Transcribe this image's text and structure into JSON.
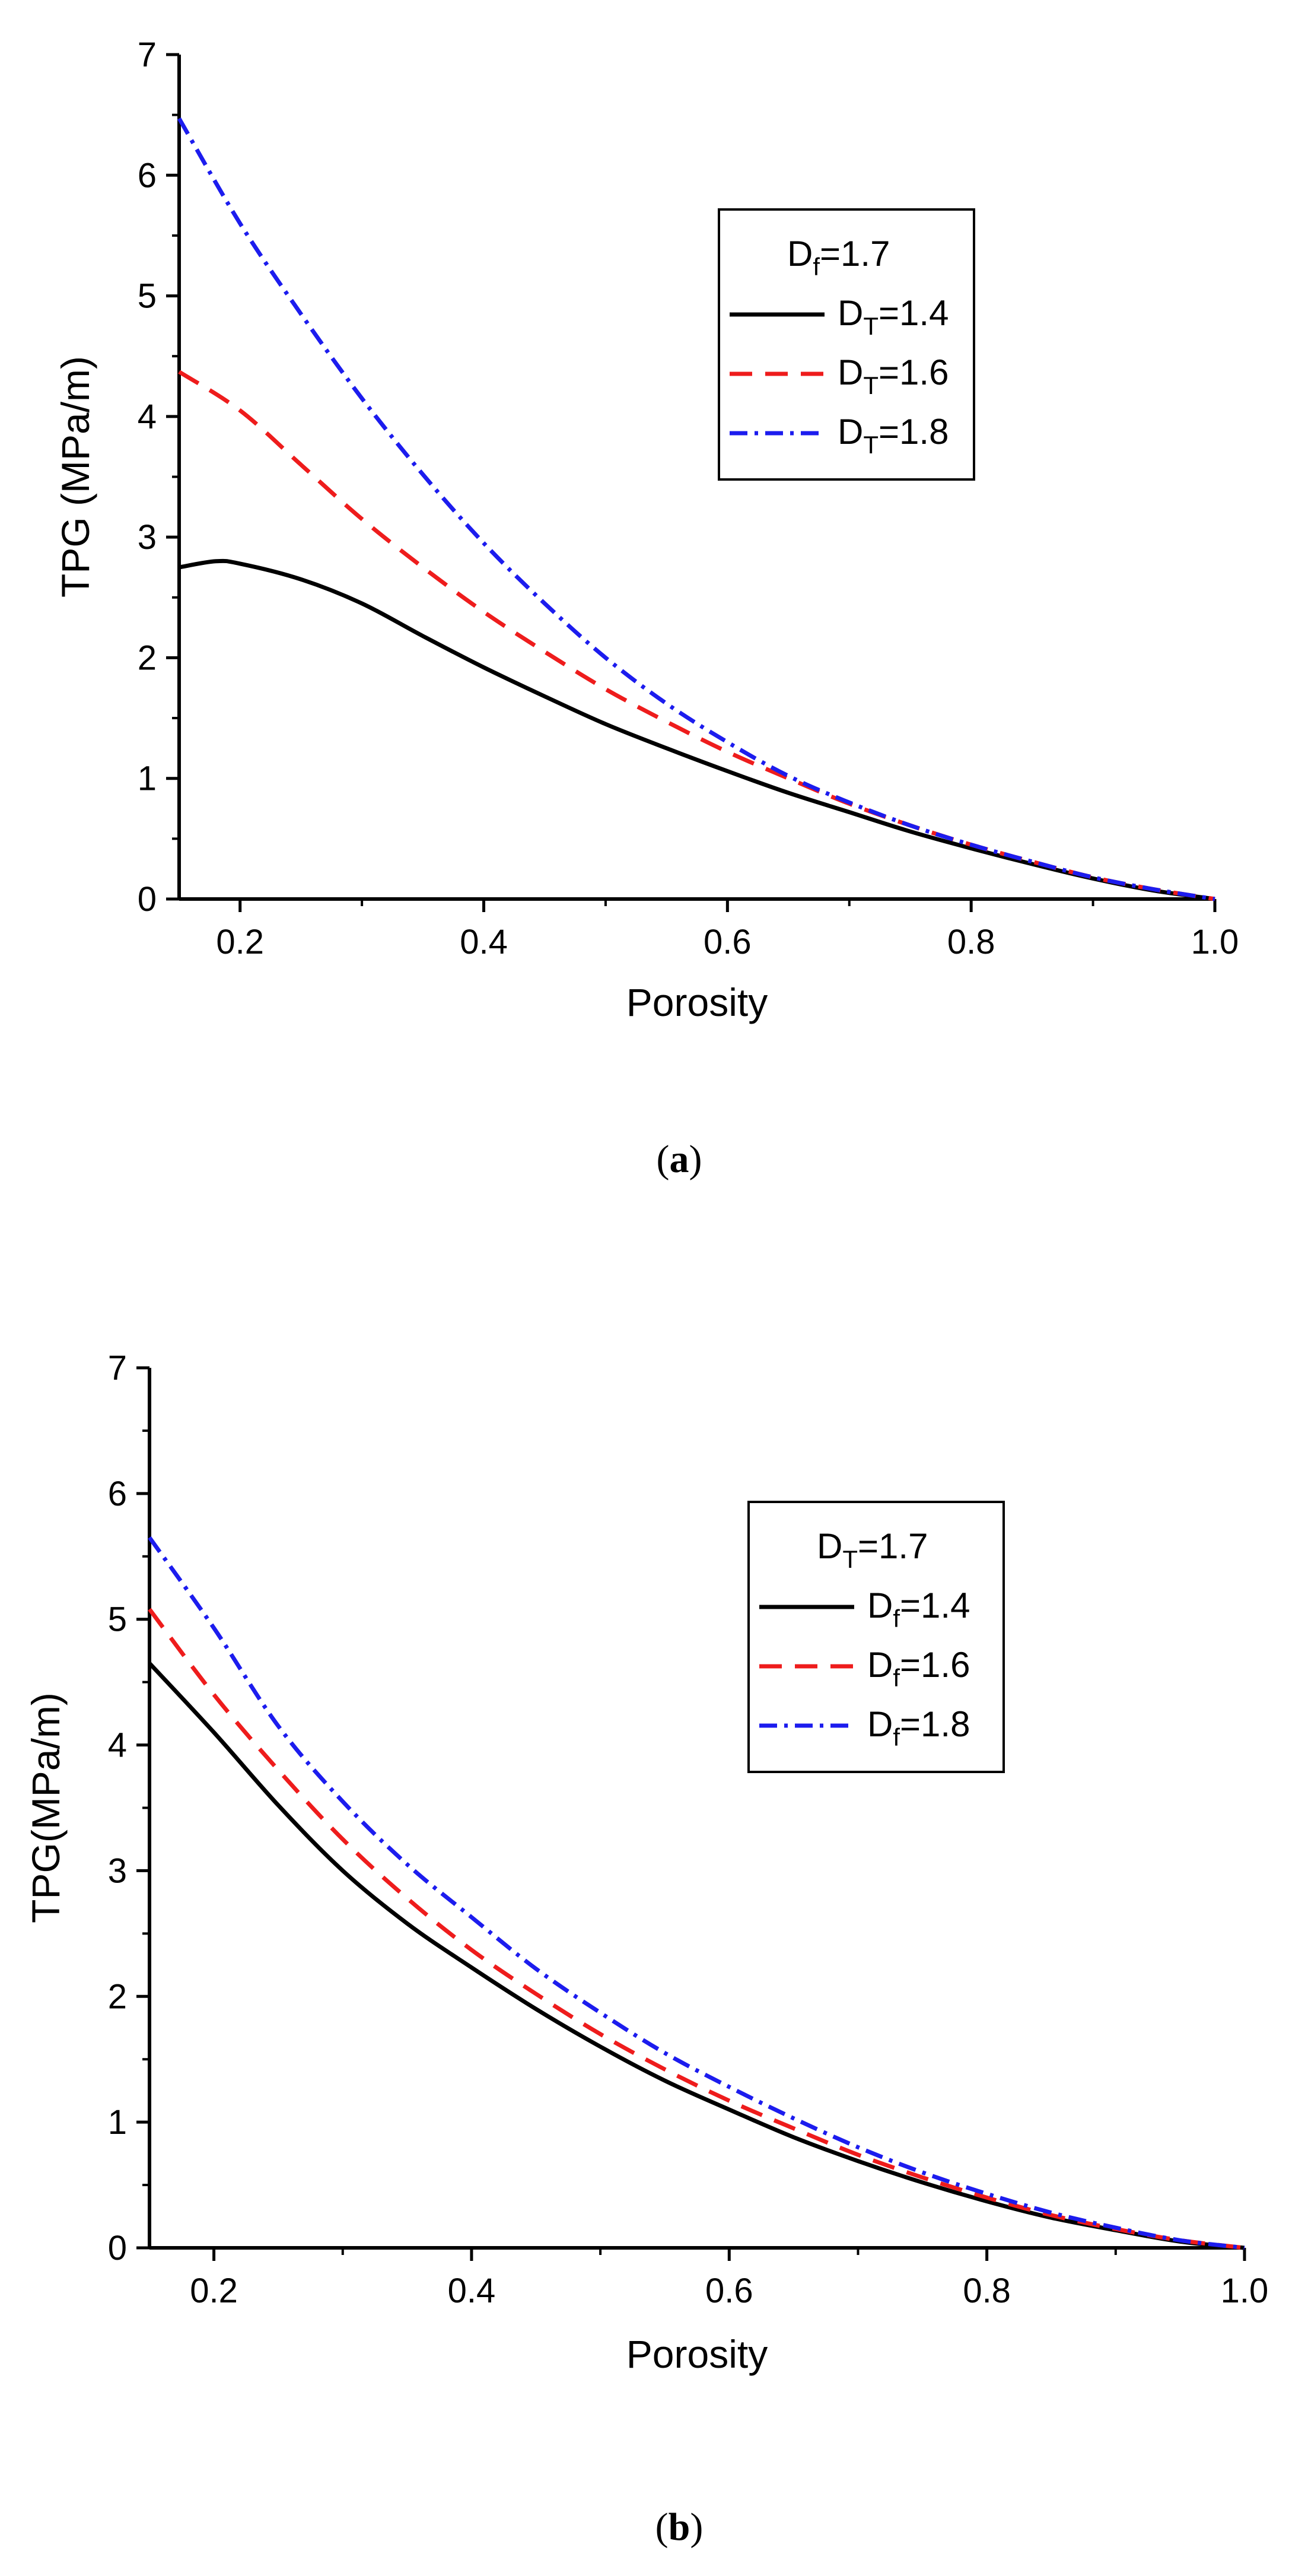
{
  "colors": {
    "black": "#000000",
    "red": "#ee1c1c",
    "blue": "#1c1cee"
  },
  "chart_data": [
    {
      "type": "line",
      "panel_label": "a",
      "title": "",
      "xlabel": "Porosity",
      "ylabel": "TPG (MPa/m)",
      "xlim": [
        0.15,
        1.0
      ],
      "ylim": [
        0,
        7
      ],
      "xticks": [
        0.2,
        0.4,
        0.6,
        0.8,
        1.0
      ],
      "xtick_labels": [
        "0.2",
        "0.4",
        "0.6",
        "0.8",
        "1.0"
      ],
      "xminor": [
        0.3,
        0.5,
        0.7,
        0.9
      ],
      "yticks": [
        0,
        1,
        2,
        3,
        4,
        5,
        6,
        7
      ],
      "ytick_labels": [
        "0",
        "1",
        "2",
        "3",
        "4",
        "5",
        "6",
        "7"
      ],
      "yminor": [
        0.5,
        1.5,
        2.5,
        3.5,
        4.5,
        5.5,
        6.5
      ],
      "legend": {
        "title_main": "D",
        "title_sub": "f",
        "title_rest": "=1.7",
        "placement": "top-right"
      },
      "series": [
        {
          "name_main": "D",
          "name_sub": "T",
          "name_rest": "=1.4",
          "color": "#000000",
          "dash": "solid",
          "x": [
            0.15,
            0.18,
            0.2,
            0.25,
            0.3,
            0.35,
            0.4,
            0.45,
            0.5,
            0.55,
            0.6,
            0.65,
            0.7,
            0.75,
            0.8,
            0.85,
            0.9,
            0.95,
            1.0
          ],
          "y": [
            2.75,
            2.8,
            2.78,
            2.65,
            2.45,
            2.18,
            1.92,
            1.68,
            1.45,
            1.25,
            1.06,
            0.88,
            0.72,
            0.56,
            0.42,
            0.29,
            0.17,
            0.07,
            0.0
          ]
        },
        {
          "name_main": "D",
          "name_sub": "T",
          "name_rest": "=1.6",
          "color": "#ee1c1c",
          "dash": "dashed",
          "x": [
            0.15,
            0.2,
            0.25,
            0.3,
            0.35,
            0.4,
            0.45,
            0.5,
            0.55,
            0.6,
            0.65,
            0.7,
            0.75,
            0.8,
            0.85,
            0.9,
            0.95,
            1.0
          ],
          "y": [
            4.37,
            4.05,
            3.6,
            3.15,
            2.75,
            2.38,
            2.05,
            1.74,
            1.47,
            1.22,
            1.0,
            0.79,
            0.61,
            0.45,
            0.31,
            0.18,
            0.08,
            0.0
          ]
        },
        {
          "name_main": "D",
          "name_sub": "T",
          "name_rest": "=1.8",
          "color": "#1c1cee",
          "dash": "dashdot",
          "x": [
            0.15,
            0.2,
            0.25,
            0.3,
            0.35,
            0.4,
            0.45,
            0.5,
            0.55,
            0.6,
            0.65,
            0.7,
            0.75,
            0.8,
            0.85,
            0.9,
            0.95,
            1.0
          ],
          "y": [
            6.47,
            5.6,
            4.85,
            4.15,
            3.52,
            2.95,
            2.45,
            2.0,
            1.62,
            1.3,
            1.02,
            0.8,
            0.61,
            0.45,
            0.31,
            0.18,
            0.08,
            0.0
          ]
        }
      ]
    },
    {
      "type": "line",
      "panel_label": "b",
      "title": "",
      "xlabel": "Porosity",
      "ylabel": "TPG(MPa/m)",
      "xlim": [
        0.15,
        1.0
      ],
      "ylim": [
        0,
        7
      ],
      "xticks": [
        0.2,
        0.4,
        0.6,
        0.8,
        1.0
      ],
      "xtick_labels": [
        "0.2",
        "0.4",
        "0.6",
        "0.8",
        "1.0"
      ],
      "xminor": [
        0.3,
        0.5,
        0.7,
        0.9
      ],
      "yticks": [
        0,
        1,
        2,
        3,
        4,
        5,
        6,
        7
      ],
      "ytick_labels": [
        "0",
        "1",
        "2",
        "3",
        "4",
        "5",
        "6",
        "7"
      ],
      "yminor": [
        0.5,
        1.5,
        2.5,
        3.5,
        4.5,
        5.5,
        6.5
      ],
      "legend": {
        "title_main": "D",
        "title_sub": "T",
        "title_rest": "=1.7",
        "placement": "top-right"
      },
      "series": [
        {
          "name_main": "D",
          "name_sub": "f",
          "name_rest": "=1.4",
          "color": "#000000",
          "dash": "solid",
          "x": [
            0.15,
            0.2,
            0.25,
            0.3,
            0.35,
            0.4,
            0.45,
            0.5,
            0.55,
            0.6,
            0.65,
            0.7,
            0.75,
            0.8,
            0.85,
            0.9,
            0.95,
            1.0
          ],
          "y": [
            4.65,
            4.1,
            3.52,
            3.0,
            2.58,
            2.23,
            1.9,
            1.6,
            1.33,
            1.1,
            0.88,
            0.69,
            0.52,
            0.37,
            0.24,
            0.14,
            0.05,
            0.0
          ]
        },
        {
          "name_main": "D",
          "name_sub": "f",
          "name_rest": "=1.6",
          "color": "#ee1c1c",
          "dash": "dashed",
          "x": [
            0.15,
            0.2,
            0.25,
            0.3,
            0.35,
            0.4,
            0.45,
            0.5,
            0.55,
            0.6,
            0.65,
            0.7,
            0.75,
            0.8,
            0.85,
            0.9,
            0.95,
            1.0
          ],
          "y": [
            5.08,
            4.4,
            3.8,
            3.25,
            2.78,
            2.37,
            2.02,
            1.7,
            1.42,
            1.17,
            0.95,
            0.74,
            0.56,
            0.4,
            0.26,
            0.15,
            0.06,
            0.0
          ]
        },
        {
          "name_main": "D",
          "name_sub": "f",
          "name_rest": "=1.8",
          "color": "#1c1cee",
          "dash": "dashdot",
          "x": [
            0.15,
            0.2,
            0.25,
            0.3,
            0.35,
            0.4,
            0.45,
            0.5,
            0.55,
            0.6,
            0.65,
            0.7,
            0.75,
            0.8,
            0.85,
            0.9,
            0.95,
            1.0
          ],
          "y": [
            5.65,
            4.93,
            4.15,
            3.55,
            3.05,
            2.63,
            2.22,
            1.87,
            1.55,
            1.28,
            1.03,
            0.8,
            0.6,
            0.43,
            0.28,
            0.16,
            0.06,
            0.0
          ]
        }
      ]
    }
  ]
}
